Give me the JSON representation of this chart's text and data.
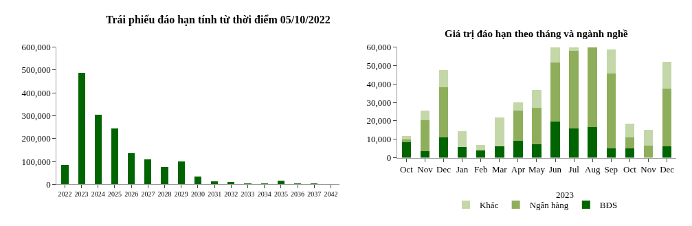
{
  "chart_data": [
    {
      "type": "bar",
      "title": "Trái phiếu đáo hạn tính từ thời điểm 05/10/2022",
      "categories": [
        "2022",
        "2023",
        "2024",
        "2025",
        "2026",
        "2027",
        "2028",
        "2029",
        "2030",
        "2031",
        "2032",
        "2033",
        "2034",
        "2035",
        "2036",
        "2037",
        "2042"
      ],
      "values": [
        84000,
        489000,
        304000,
        244000,
        136000,
        108000,
        76000,
        100000,
        33000,
        12000,
        10000,
        2000,
        5000,
        15000,
        5000,
        3000,
        1000
      ],
      "color": "#006400",
      "ylim": [
        0,
        600000
      ],
      "yticks": [
        0,
        {
          "value": 100000,
          "label": "100,000"
        },
        {
          "value": 200000,
          "label": "200,000"
        },
        {
          "value": 300000,
          "label": "300,000"
        },
        {
          "value": 400000,
          "label": "400,000"
        },
        {
          "value": 500000,
          "label": "500,000"
        },
        {
          "value": 600000,
          "label": "600,000"
        }
      ]
    },
    {
      "type": "bar",
      "title": "Giá trị đáo hạn theo tháng và ngành nghề",
      "categories": [
        "Oct",
        "Nov",
        "Dec",
        "Jan",
        "Feb",
        "Mar",
        "Apr",
        "May",
        "Jun",
        "Jul",
        "Aug",
        "Sep",
        "Oct",
        "Nov",
        "Dec"
      ],
      "stacked": true,
      "series": [
        {
          "name": "BĐS",
          "color": "#006400",
          "values": [
            8300,
            3500,
            11000,
            5900,
            4100,
            6100,
            9000,
            7200,
            19700,
            15900,
            16600,
            4900,
            4900,
            0,
            6200
          ]
        },
        {
          "name": "Ngân hàng",
          "color": "#8fae5c",
          "values": [
            1500,
            16900,
            27100,
            0,
            0,
            0,
            16700,
            19800,
            31900,
            42100,
            43400,
            40900,
            6300,
            6500,
            31200
          ]
        },
        {
          "name": "Khác",
          "color": "#c4d7a8",
          "values": [
            2000,
            5200,
            9300,
            8600,
            3000,
            15600,
            4200,
            9700,
            8400,
            2000,
            0,
            12900,
            7400,
            8500,
            14700
          ]
        }
      ],
      "annotations": [
        "2023"
      ],
      "ylim": [
        0,
        60000
      ],
      "yticks": [
        0,
        {
          "value": 10000,
          "label": "10,000"
        },
        {
          "value": 20000,
          "label": "20,000"
        },
        {
          "value": 30000,
          "label": "30,000"
        },
        {
          "value": 40000,
          "label": "40,000"
        },
        {
          "value": 50000,
          "label": "50,000"
        },
        {
          "value": 60000,
          "label": "60,000"
        }
      ],
      "legend": "bottom"
    }
  ]
}
